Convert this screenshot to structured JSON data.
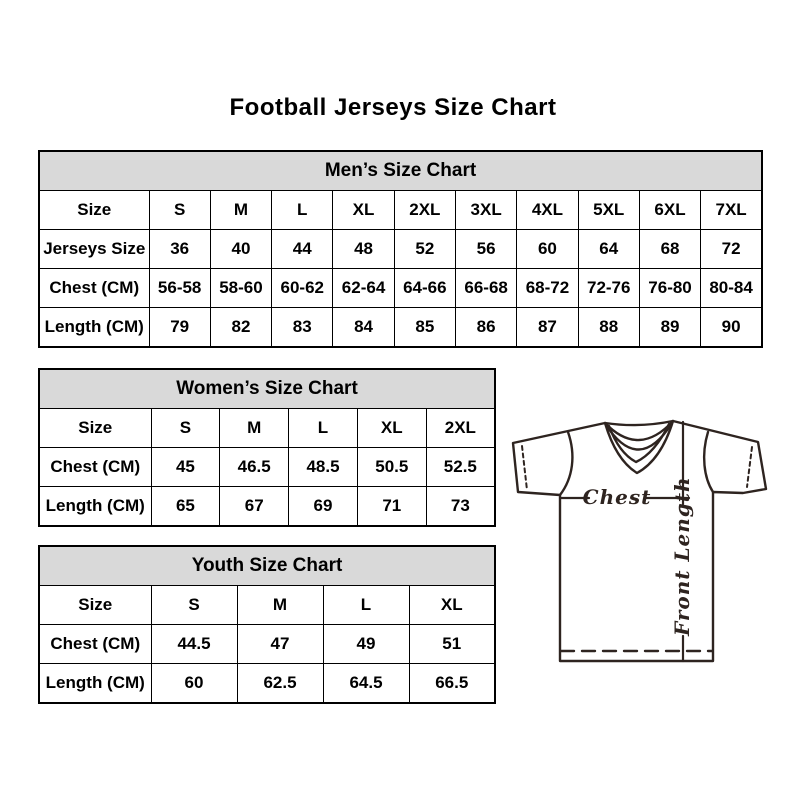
{
  "page": {
    "title": "Football Jerseys Size Chart",
    "background": "#ffffff"
  },
  "colors": {
    "section_header_bg": "#d9d9d9",
    "table_border": "#000000",
    "text": "#000000",
    "jersey_line": "#2e2420"
  },
  "tables": {
    "men": {
      "title": "Men’s Size Chart",
      "rows": [
        [
          "Size",
          "S",
          "M",
          "L",
          "XL",
          "2XL",
          "3XL",
          "4XL",
          "5XL",
          "6XL",
          "7XL"
        ],
        [
          "Jerseys Size",
          "36",
          "40",
          "44",
          "48",
          "52",
          "56",
          "60",
          "64",
          "68",
          "72"
        ],
        [
          "Chest (CM)",
          "56-58",
          "58-60",
          "60-62",
          "62-64",
          "64-66",
          "66-68",
          "68-72",
          "72-76",
          "76-80",
          "80-84"
        ],
        [
          "Length (CM)",
          "79",
          "82",
          "83",
          "84",
          "85",
          "86",
          "87",
          "88",
          "89",
          "90"
        ]
      ]
    },
    "women": {
      "title": "Women’s Size Chart",
      "rows": [
        [
          "Size",
          "S",
          "M",
          "L",
          "XL",
          "2XL"
        ],
        [
          "Chest (CM)",
          "45",
          "46.5",
          "48.5",
          "50.5",
          "52.5"
        ],
        [
          "Length (CM)",
          "65",
          "67",
          "69",
          "71",
          "73"
        ]
      ]
    },
    "youth": {
      "title": "Youth Size Chart",
      "rows": [
        [
          "Size",
          "S",
          "M",
          "L",
          "XL"
        ],
        [
          "Chest (CM)",
          "44.5",
          "47",
          "49",
          "51"
        ],
        [
          "Length (CM)",
          "60",
          "62.5",
          "64.5",
          "66.5"
        ]
      ]
    }
  },
  "diagram": {
    "chest_label": "Chest",
    "front_length_label": "Front Length"
  }
}
